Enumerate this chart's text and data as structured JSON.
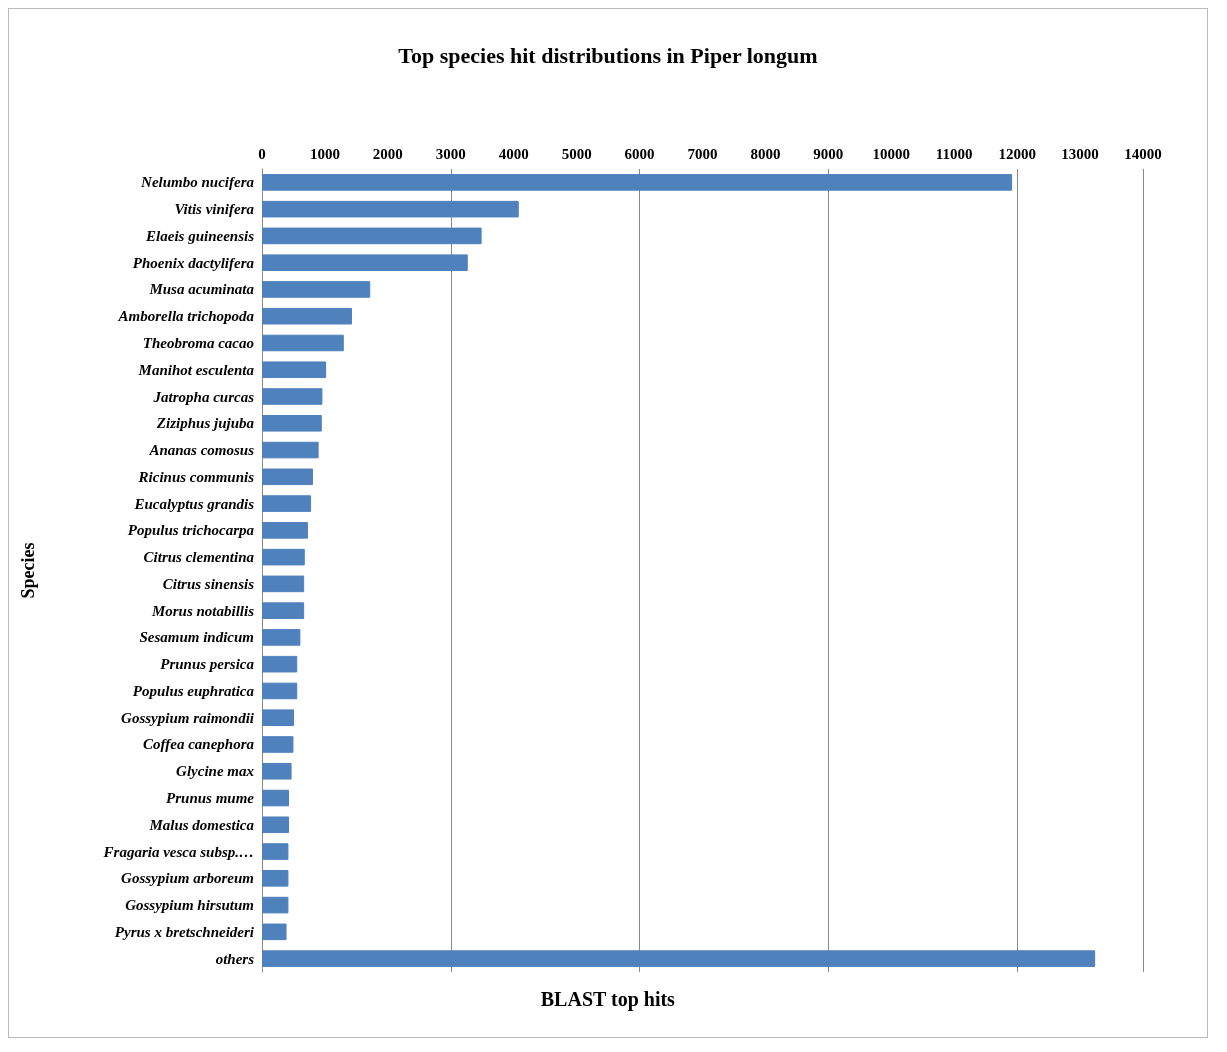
{
  "chart_data": {
    "type": "bar",
    "orientation": "horizontal",
    "title": "Top species hit distributions in Piper longum",
    "xlabel": "BLAST top hits",
    "ylabel": "Species",
    "categories": [
      "Nelumbo nucifera",
      "Vitis vinifera",
      "Elaeis guineensis",
      "Phoenix dactylifera",
      "Musa acuminata",
      "Amborella trichopoda",
      "Theobroma cacao",
      "Manihot esculenta",
      "Jatropha curcas",
      "Ziziphus jujuba",
      "Ananas comosus",
      "Ricinus communis",
      "Eucalyptus grandis",
      "Populus trichocarpa",
      "Citrus clementina",
      "Citrus sinensis",
      "Morus notabillis",
      "Sesamum indicum",
      "Prunus persica",
      "Populus euphratica",
      "Gossypium raimondii",
      "Coffea canephora",
      "Glycine max",
      "Prunus mume",
      "Malus domestica",
      "Fragaria vesca subsp.…",
      "Gossypium arboreum",
      "Gossypium hirsutum",
      "Pyrus x bretschneideri",
      "others"
    ],
    "values": [
      11920,
      4080,
      3490,
      3270,
      1720,
      1430,
      1300,
      1020,
      960,
      950,
      900,
      810,
      780,
      730,
      680,
      670,
      670,
      610,
      560,
      560,
      510,
      500,
      470,
      430,
      430,
      420,
      420,
      420,
      390,
      13240
    ],
    "color": "#4f81bd",
    "xlim": [
      0,
      14000
    ],
    "xticks": [
      0,
      1000,
      2000,
      3000,
      4000,
      5000,
      6000,
      7000,
      8000,
      9000,
      10000,
      11000,
      12000,
      13000,
      14000
    ],
    "grid": "x"
  }
}
